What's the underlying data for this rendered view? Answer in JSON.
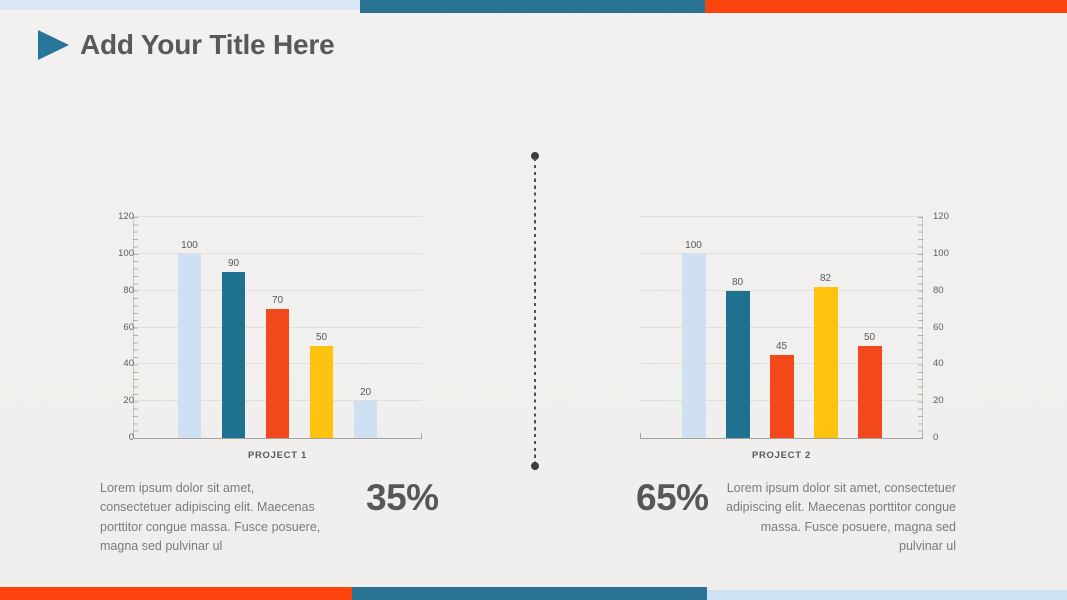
{
  "slide": {
    "header": {
      "title": "Add Your Title Here"
    },
    "sections": {
      "left": {
        "percent": "35%",
        "description": "Lorem ipsum dolor sit amet, consectetuer adipiscing elit. Maecenas porttitor congue massa. Fusce posuere, magna sed pulvinar ul",
        "lines": [
          "Lorem ipsum dolor sit amet,",
          "consectetuer adipiscing elit. Maecenas",
          "porttitor congue massa. Fusce posuere,",
          "magna sed pulvinar ul"
        ]
      },
      "right": {
        "percent": "65%",
        "description": "Lorem ipsum dolor sit amet, consectetuer adipiscing elit. Maecenas porttitor congue massa. Fusce posuere, magna sed pulvinar ul",
        "lines": [
          "Lorem ipsum dolor sit amet, consectetuer",
          "adipiscing elit. Maecenas porttitor congue",
          "massa. Fusce posuere, magna sed",
          "pulvinar ul"
        ]
      }
    },
    "decor": {
      "background_color": "#f1f0ee",
      "title_color": "#595959",
      "accent_triangle_color": "#27769a",
      "divider_color": "#3d3d3d",
      "top_bar_colors": [
        "#d9e7f5",
        "#2a7392",
        "#fb430e"
      ],
      "bottom_bar_colors": [
        "#fb430e",
        "#2a7392",
        "#cfe2f5"
      ]
    }
  },
  "chart_data": [
    {
      "type": "bar",
      "title": "",
      "x_axis_label": "PROJECT 1",
      "values": [
        100,
        90,
        70,
        50,
        20
      ],
      "bar_colors": [
        "#cfe0f3",
        "#1f7190",
        "#f3491a",
        "#ffc20e",
        "#cfe0f3"
      ],
      "ylim": [
        0,
        120
      ],
      "yticks": [
        0,
        20,
        40,
        60,
        80,
        100,
        120
      ],
      "axis_side": "left",
      "grid": true,
      "show_data_labels": true,
      "legend": "none"
    },
    {
      "type": "bar",
      "title": "",
      "x_axis_label": "PROJECT 2",
      "values": [
        100,
        80,
        45,
        82,
        50
      ],
      "bar_colors": [
        "#cfe0f3",
        "#1f7190",
        "#f3491a",
        "#ffc20e",
        "#f3491a"
      ],
      "ylim": [
        0,
        120
      ],
      "yticks": [
        0,
        20,
        40,
        60,
        80,
        100,
        120
      ],
      "axis_side": "right",
      "grid": true,
      "show_data_labels": true,
      "legend": "none"
    }
  ]
}
